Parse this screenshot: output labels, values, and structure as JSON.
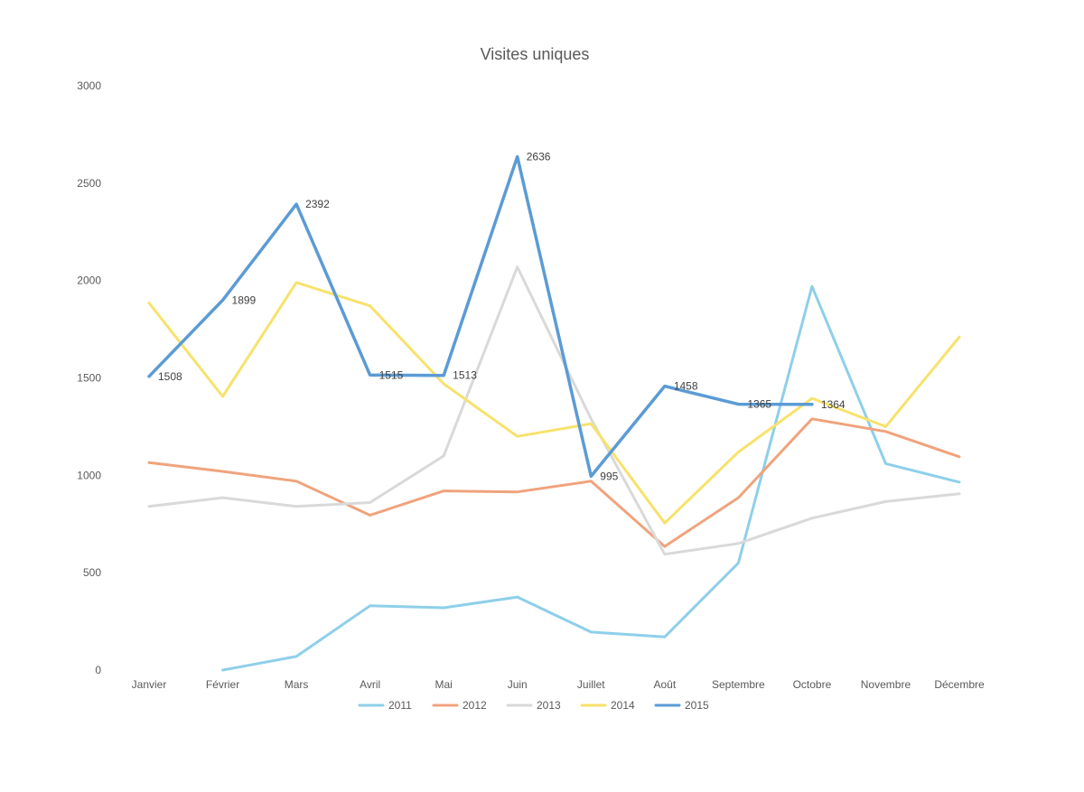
{
  "chart_data": {
    "type": "line",
    "title": "Visites uniques",
    "xlabel": "",
    "ylabel": "",
    "categories": [
      "Janvier",
      "Février",
      "Mars",
      "Avril",
      "Mai",
      "Juin",
      "Juillet",
      "Août",
      "Septembre",
      "Octobre",
      "Novembre",
      "Décembre"
    ],
    "ylim": [
      0,
      3000
    ],
    "yticks": [
      0,
      500,
      1000,
      1500,
      2000,
      2500,
      3000
    ],
    "grid": false,
    "legend_position": "bottom",
    "series": [
      {
        "name": "2011",
        "color": "#8ecfea",
        "values": [
          null,
          0,
          70,
          330,
          320,
          375,
          195,
          170,
          550,
          1970,
          1060,
          965
        ],
        "data_labels": false
      },
      {
        "name": "2012",
        "color": "#f0a37c",
        "values": [
          1065,
          1020,
          970,
          795,
          920,
          915,
          970,
          635,
          885,
          1290,
          1225,
          1095
        ],
        "data_labels": false
      },
      {
        "name": "2013",
        "color": "#d9d9d9",
        "values": [
          840,
          885,
          840,
          860,
          1100,
          2070,
          1290,
          595,
          650,
          780,
          865,
          905
        ],
        "data_labels": false
      },
      {
        "name": "2014",
        "color": "#f7e26b",
        "values": [
          1885,
          1405,
          1990,
          1870,
          1470,
          1200,
          1265,
          755,
          1120,
          1395,
          1250,
          1710
        ],
        "data_labels": false
      },
      {
        "name": "2015",
        "color": "#5b9bd5",
        "values": [
          1508,
          1899,
          2392,
          1515,
          1513,
          2636,
          995,
          1458,
          1365,
          1364,
          null,
          null
        ],
        "data_labels": true
      }
    ]
  }
}
